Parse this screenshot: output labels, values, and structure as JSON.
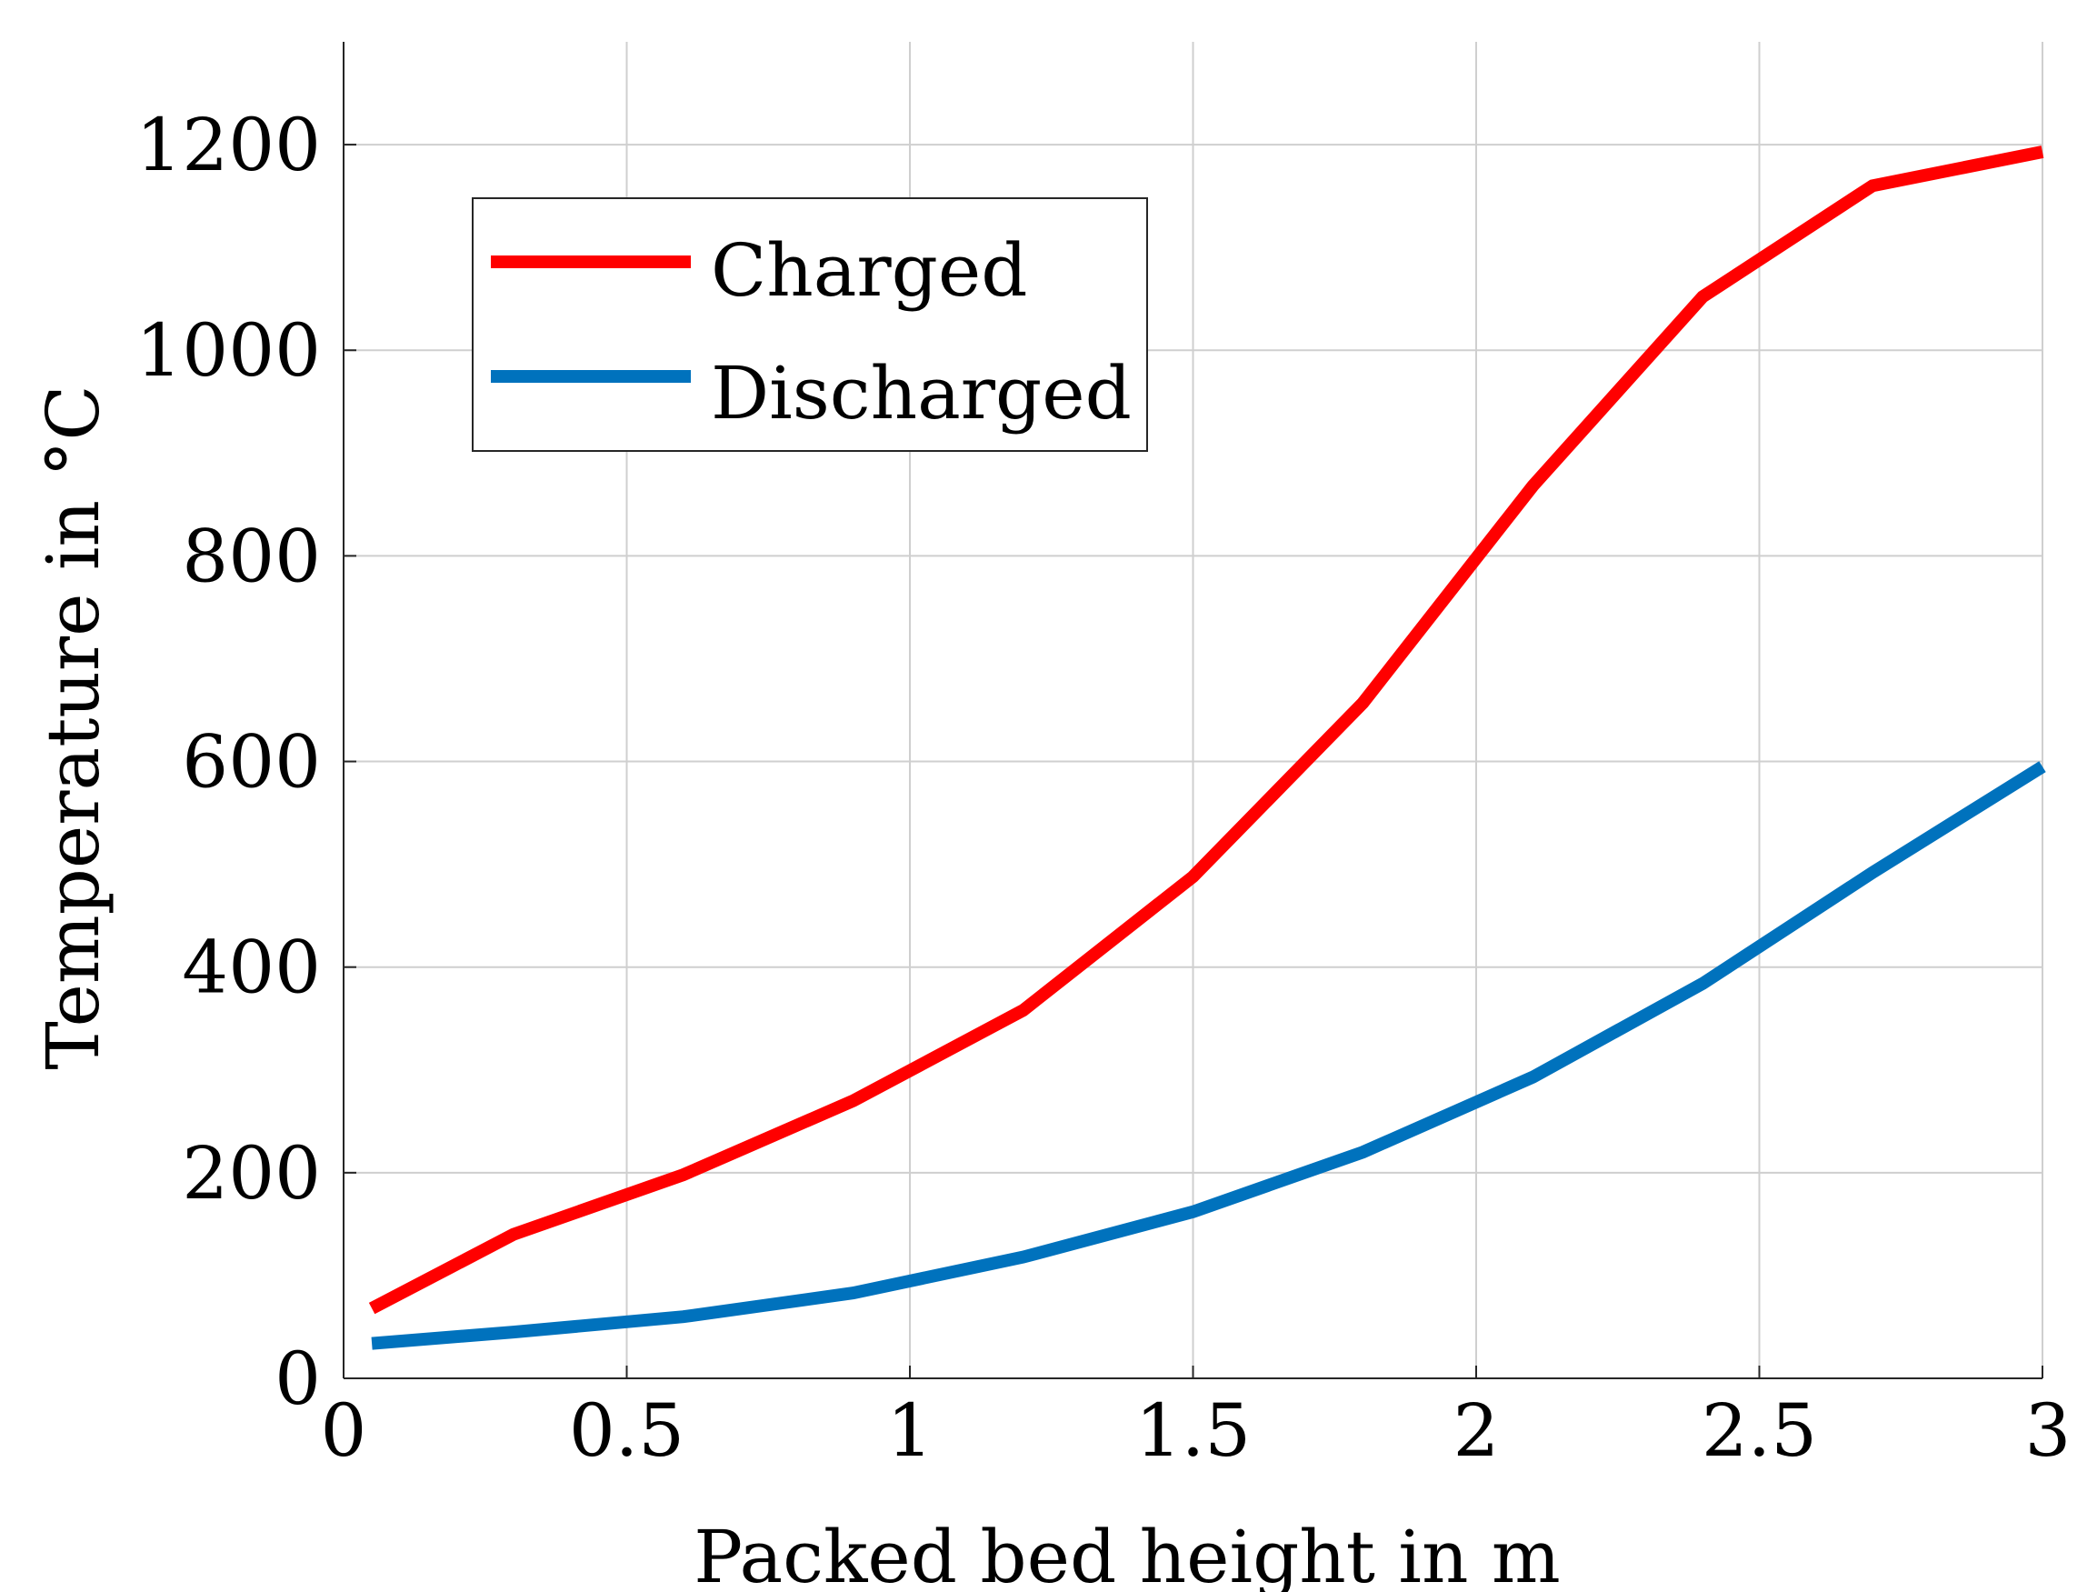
{
  "chart_data": {
    "type": "line",
    "title": "",
    "xlabel": "Packed bed height in m",
    "ylabel": "Temperature in °C",
    "xlim": [
      0,
      3
    ],
    "ylim": [
      0,
      1300
    ],
    "xticks": [
      0,
      0.5,
      1,
      1.5,
      2,
      2.5,
      3
    ],
    "xtick_labels": [
      "0",
      "0.5",
      "1",
      "1.5",
      "2",
      "2.5",
      "3"
    ],
    "yticks": [
      0,
      200,
      400,
      600,
      800,
      1000,
      1200
    ],
    "ytick_labels": [
      "0",
      "200",
      "400",
      "600",
      "800",
      "1000",
      "1200"
    ],
    "grid": true,
    "legend_position": "top-left",
    "x": [
      0.05,
      0.3,
      0.6,
      0.9,
      1.2,
      1.5,
      1.8,
      2.1,
      2.4,
      2.7,
      3.0
    ],
    "series": [
      {
        "name": "Charged",
        "color": "#ff0000",
        "values": [
          68,
          140,
          198,
          270,
          358,
          488,
          657,
          868,
          1052,
          1160,
          1193
        ]
      },
      {
        "name": "Discharged",
        "color": "#0072bd",
        "values": [
          34,
          45,
          60,
          83,
          118,
          162,
          220,
          293,
          384,
          492,
          595
        ]
      }
    ]
  }
}
